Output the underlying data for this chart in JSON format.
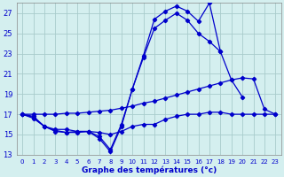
{
  "title": "Graphe des températures (°c)",
  "bg_color": "#d4efef",
  "grid_color": "#a8cccc",
  "line_color": "#0000cc",
  "xlim": [
    -0.5,
    23.5
  ],
  "ylim": [
    13,
    28
  ],
  "yticks": [
    13,
    15,
    17,
    19,
    21,
    23,
    25,
    27
  ],
  "xticks": [
    0,
    1,
    2,
    3,
    4,
    5,
    6,
    7,
    8,
    9,
    10,
    11,
    12,
    13,
    14,
    15,
    16,
    17,
    18,
    19,
    20,
    21,
    22,
    23
  ],
  "series": [
    {
      "x": [
        0,
        1,
        2,
        3,
        4,
        5,
        6,
        7,
        8,
        9,
        10,
        11,
        12,
        13,
        14,
        15,
        16,
        17,
        18,
        19,
        20,
        21,
        22,
        23
      ],
      "y": [
        17,
        16.6,
        15.8,
        15.3,
        15.2,
        15.2,
        15.3,
        14.6,
        13.3,
        15.8,
        19.5,
        22.8,
        26.4,
        27.2,
        27.7,
        27.2,
        26.2,
        28.0,
        23.2,
        null,
        null,
        null,
        null,
        null
      ]
    },
    {
      "x": [
        0,
        1,
        2,
        3,
        4,
        5,
        6,
        7,
        8,
        9,
        10,
        11,
        12,
        13,
        14,
        15,
        16,
        17,
        18,
        19,
        20,
        21,
        22,
        23
      ],
      "y": [
        17,
        16.7,
        15.8,
        15.4,
        15.2,
        15.3,
        15.3,
        14.8,
        13.5,
        16.0,
        19.5,
        22.6,
        25.5,
        26.3,
        27.0,
        26.3,
        25.0,
        24.2,
        23.2,
        20.4,
        18.7,
        null,
        null,
        null
      ]
    },
    {
      "x": [
        0,
        1,
        2,
        3,
        4,
        5,
        6,
        7,
        8,
        9,
        10,
        11,
        12,
        13,
        14,
        15,
        16,
        17,
        18,
        19,
        20,
        21,
        22,
        23
      ],
      "y": [
        17,
        17.0,
        17.0,
        17.0,
        17.1,
        17.1,
        17.2,
        17.3,
        17.4,
        17.6,
        17.8,
        18.1,
        18.3,
        18.6,
        18.9,
        19.2,
        19.5,
        19.8,
        20.1,
        20.4,
        20.6,
        20.5,
        17.5,
        17.0
      ]
    },
    {
      "x": [
        0,
        1,
        2,
        3,
        4,
        5,
        6,
        7,
        8,
        9,
        10,
        11,
        12,
        13,
        14,
        15,
        16,
        17,
        18,
        19,
        20,
        21,
        22,
        23
      ],
      "y": [
        17,
        16.8,
        15.8,
        15.5,
        15.5,
        15.3,
        15.3,
        15.2,
        15.0,
        15.3,
        15.8,
        16.0,
        16.0,
        16.5,
        16.8,
        17.0,
        17.0,
        17.2,
        17.2,
        17.0,
        17.0,
        17.0,
        17.0,
        17.0
      ]
    }
  ]
}
